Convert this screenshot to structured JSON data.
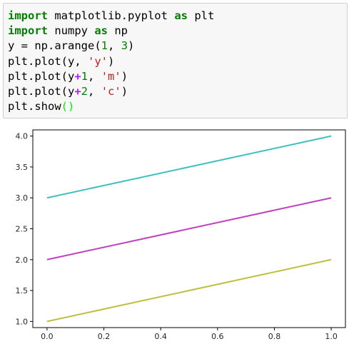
{
  "code_cell": {
    "lines": [
      [
        {
          "t": "import",
          "c": "kw"
        },
        {
          "t": " matplotlib.pyplot ",
          "c": "plain"
        },
        {
          "t": "as",
          "c": "kw"
        },
        {
          "t": " plt",
          "c": "plain"
        }
      ],
      [
        {
          "t": "import",
          "c": "kw"
        },
        {
          "t": " numpy ",
          "c": "plain"
        },
        {
          "t": "as",
          "c": "kw"
        },
        {
          "t": " np",
          "c": "plain"
        }
      ],
      [
        {
          "t": "y ",
          "c": "plain"
        },
        {
          "t": "=",
          "c": "plain"
        },
        {
          "t": " np.arange(",
          "c": "plain"
        },
        {
          "t": "1",
          "c": "num"
        },
        {
          "t": ", ",
          "c": "plain"
        },
        {
          "t": "3",
          "c": "num"
        },
        {
          "t": ")",
          "c": "plain"
        }
      ],
      [
        {
          "t": "plt.plot(y, ",
          "c": "plain"
        },
        {
          "t": "'y'",
          "c": "str"
        },
        {
          "t": ")",
          "c": "plain"
        }
      ],
      [
        {
          "t": "plt.plot(y",
          "c": "plain"
        },
        {
          "t": "+",
          "c": "op"
        },
        {
          "t": "1",
          "c": "num"
        },
        {
          "t": ", ",
          "c": "plain"
        },
        {
          "t": "'m'",
          "c": "str"
        },
        {
          "t": ")",
          "c": "plain"
        }
      ],
      [
        {
          "t": "plt.plot(y",
          "c": "plain"
        },
        {
          "t": "+",
          "c": "op"
        },
        {
          "t": "2",
          "c": "num"
        },
        {
          "t": ", ",
          "c": "plain"
        },
        {
          "t": "'c'",
          "c": "str"
        },
        {
          "t": ")",
          "c": "plain"
        }
      ],
      [
        {
          "t": "plt.show",
          "c": "plain"
        },
        {
          "t": "()",
          "c": "bracket"
        }
      ]
    ]
  },
  "chart_data": {
    "type": "line",
    "title": "",
    "xlabel": "",
    "ylabel": "",
    "xlim": [
      -0.05,
      1.05
    ],
    "ylim": [
      0.9,
      4.1
    ],
    "xticks": [
      0.0,
      0.2,
      0.4,
      0.6,
      0.8,
      1.0
    ],
    "xtick_labels": [
      "0.0",
      "0.2",
      "0.4",
      "0.6",
      "0.8",
      "1.0"
    ],
    "yticks": [
      1.0,
      1.5,
      2.0,
      2.5,
      3.0,
      3.5,
      4.0
    ],
    "ytick_labels": [
      "1.0",
      "1.5",
      "2.0",
      "2.5",
      "3.0",
      "3.5",
      "4.0"
    ],
    "grid": false,
    "series": [
      {
        "x": [
          0,
          1
        ],
        "y": [
          1,
          2
        ],
        "color": "#bfbf3f"
      },
      {
        "x": [
          0,
          1
        ],
        "y": [
          2,
          3
        ],
        "color": "#bf3fbf"
      },
      {
        "x": [
          0,
          1
        ],
        "y": [
          3,
          4
        ],
        "color": "#3fbfbf"
      }
    ]
  }
}
